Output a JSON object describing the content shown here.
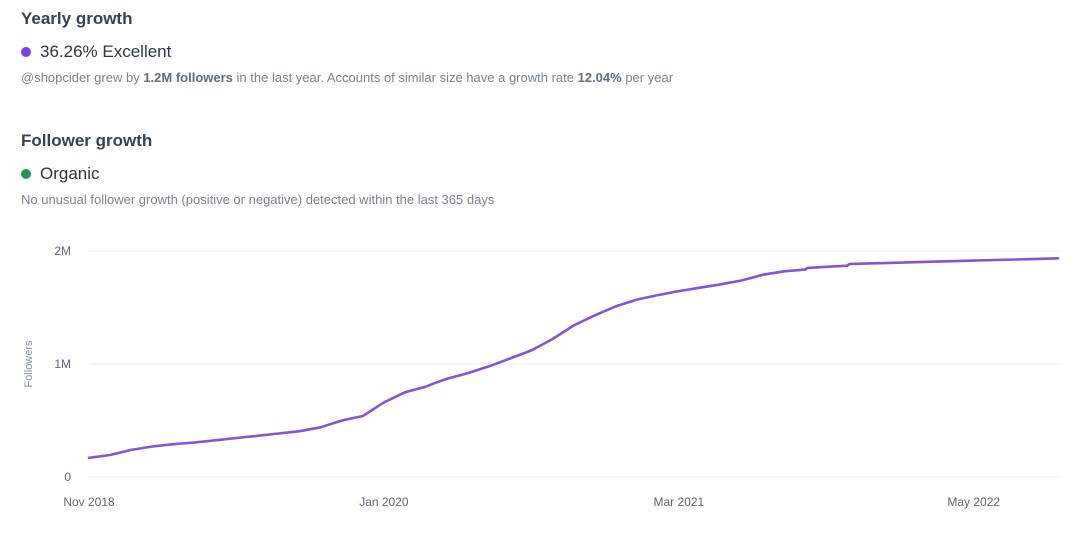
{
  "yearly": {
    "title": "Yearly growth",
    "status": "36.26% Excellent",
    "desc_pre": "@shopcider grew by",
    "desc_b1": "1.2M followers",
    "desc_mid": "in the last year. Accounts of similar size have a growth rate",
    "desc_b2": "12.04%",
    "desc_post": "per year"
  },
  "follower": {
    "title": "Follower growth",
    "status": "Organic",
    "desc": "No unusual follower growth (positive or negative) detected within the last 365 days"
  },
  "colors": {
    "purple": "#7b3fe4",
    "green": "#27924f",
    "line": "#8454d6"
  },
  "chart_data": {
    "type": "line",
    "ylabel": "Followers",
    "ylim": [
      0,
      2000000
    ],
    "yticks": [
      0,
      1000000,
      2000000
    ],
    "ytick_labels": [
      "0",
      "1M",
      "2M"
    ],
    "xlim": [
      0,
      46
    ],
    "xticks": [
      0,
      14,
      28,
      42
    ],
    "xtick_labels": [
      "Nov 2018",
      "Jan 2020",
      "Mar 2021",
      "May 2022"
    ],
    "series": [
      {
        "name": "Followers",
        "x": [
          0,
          1,
          2,
          3,
          4,
          5,
          6,
          7,
          8,
          9,
          10,
          11,
          12,
          13,
          14,
          15,
          16,
          16.4,
          17,
          18,
          19,
          20,
          21,
          22,
          23,
          24,
          25,
          26,
          27,
          28,
          29,
          30,
          31,
          32,
          33,
          34,
          34.1,
          35,
          36,
          36.1,
          37,
          38,
          39,
          40,
          41,
          42,
          43,
          44,
          45,
          46
        ],
        "values": [
          170000,
          195000,
          240000,
          270000,
          290000,
          305000,
          325000,
          345000,
          365000,
          385000,
          405000,
          440000,
          500000,
          540000,
          660000,
          750000,
          800000,
          830000,
          870000,
          920000,
          980000,
          1050000,
          1120000,
          1220000,
          1340000,
          1430000,
          1510000,
          1570000,
          1610000,
          1645000,
          1675000,
          1705000,
          1740000,
          1790000,
          1820000,
          1835000,
          1850000,
          1860000,
          1870000,
          1885000,
          1890000,
          1895000,
          1900000,
          1905000,
          1910000,
          1915000,
          1920000,
          1925000,
          1930000,
          1935000
        ]
      }
    ]
  }
}
